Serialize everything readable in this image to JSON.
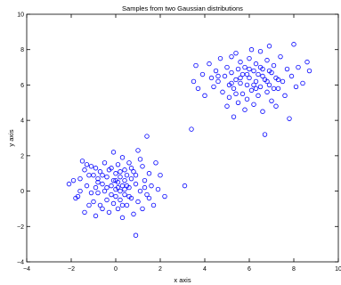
{
  "chart_data": {
    "type": "scatter",
    "title": "Samples from two Gaussian distributions",
    "xlabel": "x axis",
    "ylabel": "y axis",
    "xlim": [
      -4,
      10
    ],
    "ylim": [
      -4,
      10
    ],
    "xticks": [
      -4,
      -2,
      0,
      2,
      4,
      6,
      8,
      10
    ],
    "yticks": [
      -4,
      -2,
      0,
      2,
      4,
      6,
      8,
      10
    ],
    "grid": false,
    "marker": "circle",
    "color": "#0000ff",
    "series": [
      {
        "points": [
          [
            -2.1,
            0.4
          ],
          [
            -1.9,
            0.6
          ],
          [
            -1.8,
            -0.4
          ],
          [
            -1.7,
            -0.3
          ],
          [
            -1.6,
            0.0
          ],
          [
            -1.5,
            1.7
          ],
          [
            -1.4,
            1.2
          ],
          [
            -1.4,
            -1.2
          ],
          [
            -1.3,
            1.5
          ],
          [
            -1.3,
            0.3
          ],
          [
            -1.2,
            -0.8
          ],
          [
            -1.1,
            1.4
          ],
          [
            -1.0,
            -0.6
          ],
          [
            -1.0,
            0.9
          ],
          [
            -0.9,
            -1.4
          ],
          [
            -0.9,
            0.2
          ],
          [
            -0.8,
            0.7
          ],
          [
            -0.8,
            -0.1
          ],
          [
            -0.7,
            1.1
          ],
          [
            -0.7,
            -0.8
          ],
          [
            -0.6,
            0.4
          ],
          [
            -0.6,
            -1.0
          ],
          [
            -0.5,
            1.6
          ],
          [
            -0.5,
            0.0
          ],
          [
            -0.4,
            -0.5
          ],
          [
            -0.4,
            0.8
          ],
          [
            -0.3,
            1.2
          ],
          [
            -0.3,
            -1.2
          ],
          [
            -0.2,
            0.3
          ],
          [
            -0.2,
            -0.2
          ],
          [
            -0.1,
            2.2
          ],
          [
            -0.1,
            0.6
          ],
          [
            -0.1,
            -0.7
          ],
          [
            0.0,
            1.0
          ],
          [
            0.0,
            0.1
          ],
          [
            0.0,
            -0.3
          ],
          [
            0.1,
            0.5
          ],
          [
            0.1,
            1.5
          ],
          [
            0.1,
            -1.0
          ],
          [
            0.2,
            0.0
          ],
          [
            0.2,
            0.8
          ],
          [
            0.2,
            -0.5
          ],
          [
            0.3,
            1.9
          ],
          [
            0.3,
            0.3
          ],
          [
            0.3,
            -1.5
          ],
          [
            0.4,
            0.6
          ],
          [
            0.4,
            -0.2
          ],
          [
            0.4,
            1.2
          ],
          [
            0.5,
            0.9
          ],
          [
            0.5,
            -0.8
          ],
          [
            0.6,
            0.2
          ],
          [
            0.6,
            1.6
          ],
          [
            0.7,
            -0.4
          ],
          [
            0.7,
            0.7
          ],
          [
            0.8,
            -1.3
          ],
          [
            0.8,
            1.1
          ],
          [
            0.9,
            -2.5
          ],
          [
            0.9,
            0.4
          ],
          [
            1.0,
            2.3
          ],
          [
            1.0,
            -0.6
          ],
          [
            1.1,
            0.0
          ],
          [
            1.2,
            1.4
          ],
          [
            1.2,
            -1.0
          ],
          [
            1.3,
            0.6
          ],
          [
            1.4,
            3.1
          ],
          [
            1.4,
            -0.2
          ],
          [
            1.5,
            1.0
          ],
          [
            1.6,
            0.3
          ],
          [
            1.7,
            -0.8
          ],
          [
            1.8,
            1.6
          ],
          [
            1.9,
            0.1
          ],
          [
            2.0,
            0.9
          ],
          [
            2.2,
            -0.3
          ],
          [
            3.1,
            0.3
          ],
          [
            -1.2,
            0.9
          ],
          [
            -1.1,
            -0.1
          ],
          [
            -0.9,
            1.3
          ],
          [
            -0.6,
            0.9
          ],
          [
            -0.4,
            0.2
          ],
          [
            -0.2,
            1.3
          ],
          [
            0.0,
            0.6
          ],
          [
            0.2,
            1.1
          ],
          [
            0.3,
            -0.8
          ],
          [
            0.5,
            0.3
          ],
          [
            0.6,
            -0.3
          ],
          [
            0.7,
            1.3
          ],
          [
            0.9,
            0.9
          ],
          [
            1.1,
            1.8
          ],
          [
            1.3,
            0.2
          ],
          [
            1.5,
            -0.4
          ],
          [
            -1.6,
            0.7
          ],
          [
            -0.8,
            0.5
          ],
          [
            0.1,
            0.2
          ],
          [
            0.4,
            0.1
          ]
        ]
      },
      {
        "points": [
          [
            3.4,
            3.5
          ],
          [
            3.5,
            6.2
          ],
          [
            3.6,
            7.1
          ],
          [
            3.7,
            5.8
          ],
          [
            3.9,
            6.6
          ],
          [
            4.0,
            5.4
          ],
          [
            4.2,
            7.2
          ],
          [
            4.3,
            6.4
          ],
          [
            4.4,
            5.9
          ],
          [
            4.5,
            6.8
          ],
          [
            4.6,
            6.2
          ],
          [
            4.7,
            7.5
          ],
          [
            4.8,
            5.6
          ],
          [
            4.9,
            6.5
          ],
          [
            5.0,
            7.0
          ],
          [
            5.0,
            4.8
          ],
          [
            5.1,
            6.0
          ],
          [
            5.1,
            5.3
          ],
          [
            5.2,
            6.7
          ],
          [
            5.2,
            7.6
          ],
          [
            5.3,
            5.8
          ],
          [
            5.3,
            4.2
          ],
          [
            5.4,
            6.3
          ],
          [
            5.4,
            7.8
          ],
          [
            5.5,
            5.0
          ],
          [
            5.5,
            6.9
          ],
          [
            5.6,
            6.1
          ],
          [
            5.6,
            7.3
          ],
          [
            5.7,
            5.5
          ],
          [
            5.7,
            6.6
          ],
          [
            5.8,
            4.6
          ],
          [
            5.8,
            7.0
          ],
          [
            5.9,
            6.0
          ],
          [
            5.9,
            5.2
          ],
          [
            6.0,
            7.5
          ],
          [
            6.0,
            6.4
          ],
          [
            6.1,
            5.7
          ],
          [
            6.1,
            8.0
          ],
          [
            6.2,
            6.8
          ],
          [
            6.2,
            4.9
          ],
          [
            6.3,
            6.2
          ],
          [
            6.3,
            7.2
          ],
          [
            6.4,
            5.4
          ],
          [
            6.4,
            6.6
          ],
          [
            6.5,
            7.9
          ],
          [
            6.5,
            5.9
          ],
          [
            6.6,
            4.5
          ],
          [
            6.6,
            6.9
          ],
          [
            6.7,
            6.3
          ],
          [
            6.7,
            3.2
          ],
          [
            6.8,
            7.4
          ],
          [
            6.8,
            5.6
          ],
          [
            6.9,
            6.0
          ],
          [
            6.9,
            8.2
          ],
          [
            7.0,
            6.7
          ],
          [
            7.0,
            5.1
          ],
          [
            7.1,
            7.1
          ],
          [
            7.2,
            6.4
          ],
          [
            7.2,
            4.8
          ],
          [
            7.3,
            5.8
          ],
          [
            7.4,
            7.6
          ],
          [
            7.5,
            6.2
          ],
          [
            7.6,
            5.4
          ],
          [
            7.7,
            6.9
          ],
          [
            7.8,
            4.1
          ],
          [
            7.9,
            6.5
          ],
          [
            8.0,
            8.3
          ],
          [
            8.1,
            5.9
          ],
          [
            8.2,
            7.0
          ],
          [
            8.4,
            6.1
          ],
          [
            8.6,
            7.3
          ],
          [
            8.7,
            6.8
          ],
          [
            5.2,
            6.1
          ],
          [
            5.6,
            6.4
          ],
          [
            6.0,
            6.9
          ],
          [
            6.3,
            5.8
          ],
          [
            6.6,
            6.5
          ],
          [
            6.9,
            6.8
          ],
          [
            7.3,
            6.3
          ],
          [
            5.9,
            6.6
          ],
          [
            6.2,
            6.0
          ],
          [
            6.5,
            7.0
          ],
          [
            6.8,
            6.2
          ],
          [
            5.4,
            5.5
          ],
          [
            7.1,
            5.8
          ],
          [
            4.6,
            6.5
          ]
        ]
      }
    ]
  }
}
